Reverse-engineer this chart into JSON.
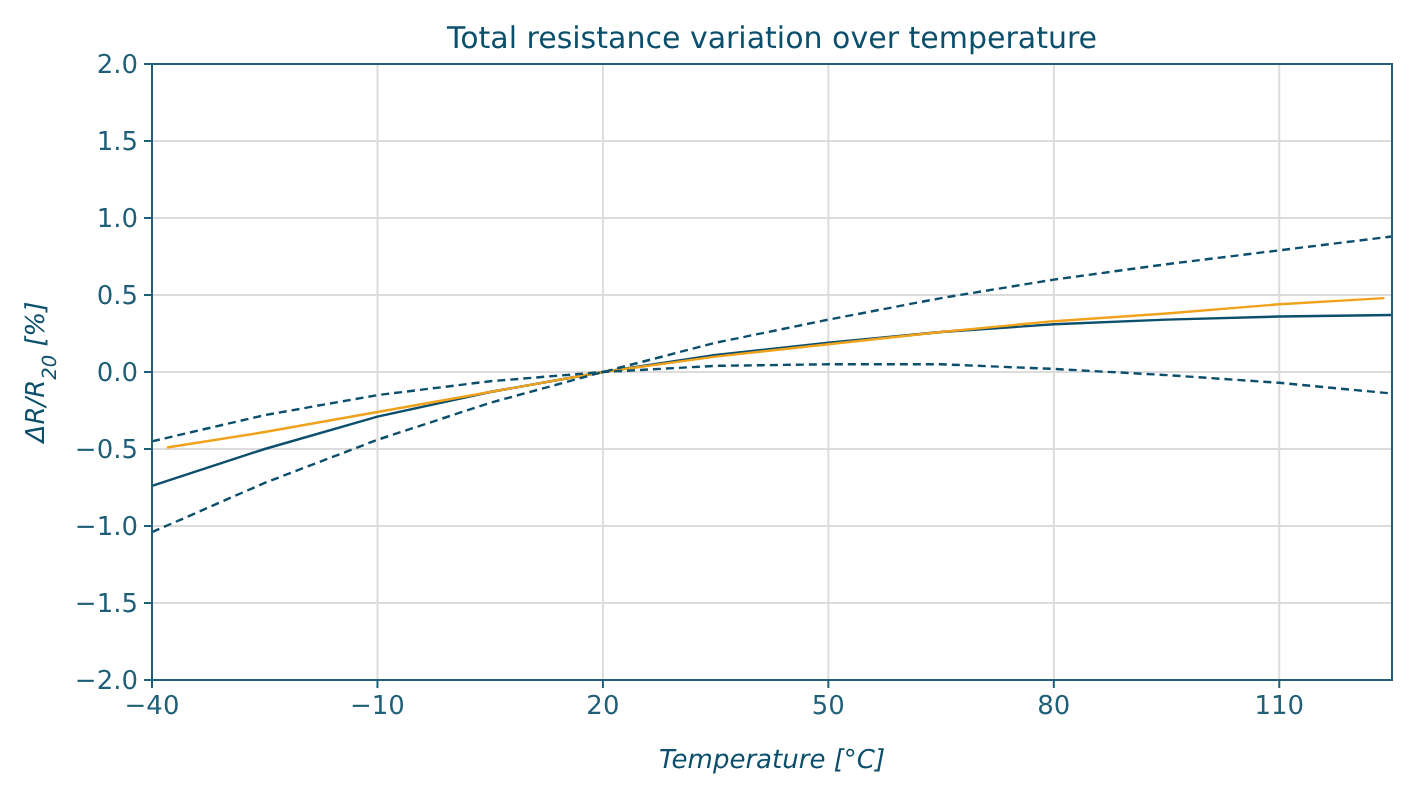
{
  "chart_data": {
    "type": "line",
    "title": "Total resistance variation over temperature",
    "xlabel": "Temperature [°C]",
    "ylabel": "ΔR/R$_{20}$ [%]",
    "xlim": [
      -40,
      125
    ],
    "xticks": [
      -40,
      -10,
      20,
      50,
      80,
      110
    ],
    "ylim": [
      -2,
      2
    ],
    "yticks": [
      {
        "value": -2,
        "label": "−2.0"
      },
      {
        "value": -1.5,
        "label": "−1.5"
      },
      {
        "value": -1,
        "label": "−1.0"
      },
      {
        "value": -0.5,
        "label": "−0.5"
      },
      {
        "value": 0,
        "label": "0.0"
      },
      {
        "value": 0.5,
        "label": "0.5"
      },
      {
        "value": 1,
        "label": "1.0"
      },
      {
        "value": 1.5,
        "label": "1.5"
      },
      {
        "value": 2,
        "label": "2.0"
      }
    ],
    "grid": true,
    "marker": "none",
    "series": [
      {
        "color": "#0b4f6c",
        "line_style": "solid",
        "x": [
          -40,
          -25,
          -10,
          5,
          20,
          35,
          50,
          65,
          80,
          95,
          110,
          125
        ],
        "values": [
          -0.74,
          -0.5,
          -0.29,
          -0.13,
          0,
          0.11,
          0.19,
          0.26,
          0.31,
          0.34,
          0.36,
          0.37
        ]
      },
      {
        "color": "#f0a21c",
        "line_style": "solid",
        "x": [
          -38,
          -25,
          -10,
          5,
          20,
          35,
          50,
          65,
          80,
          95,
          110,
          124
        ],
        "values": [
          -0.49,
          -0.39,
          -0.26,
          -0.13,
          0,
          0.1,
          0.18,
          0.26,
          0.33,
          0.38,
          0.44,
          0.48
        ]
      },
      {
        "color": "#0b4f6c",
        "line_style": "dashed",
        "x": [
          -40,
          -25,
          -10,
          5,
          20,
          35,
          50,
          65,
          80,
          95,
          110,
          125
        ],
        "values": [
          -0.45,
          -0.28,
          -0.15,
          -0.06,
          0,
          0.04,
          0.05,
          0.05,
          0.02,
          -0.02,
          -0.07,
          -0.14
        ]
      },
      {
        "color": "#0b4f6c",
        "line_style": "dashed",
        "x": [
          -40,
          -25,
          -10,
          5,
          20,
          35,
          50,
          65,
          80,
          95,
          110,
          125
        ],
        "values": [
          -1.04,
          -0.72,
          -0.44,
          -0.2,
          0,
          0.19,
          0.34,
          0.48,
          0.6,
          0.7,
          0.79,
          0.88
        ]
      }
    ]
  }
}
